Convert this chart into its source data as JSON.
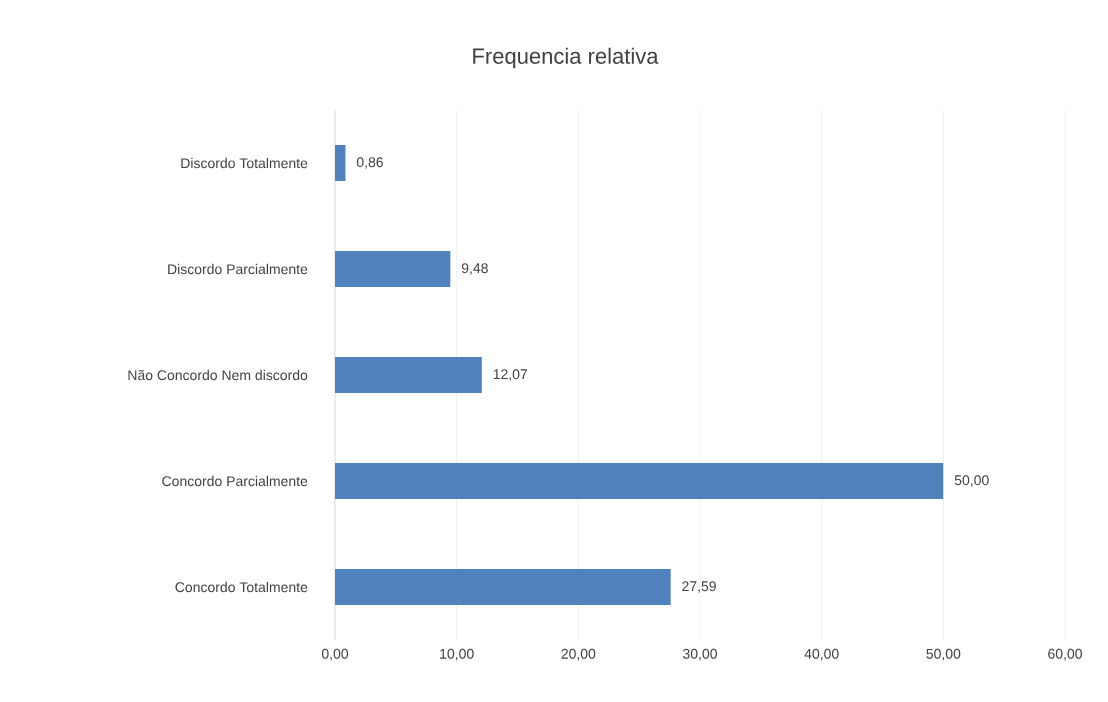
{
  "chart_data": {
    "type": "bar",
    "orientation": "horizontal",
    "title": "Frequencia relativa",
    "categories": [
      "Discordo Totalmente",
      "Discordo Parcialmente",
      "Não Concordo Nem discordo",
      "Concordo Parcialmente",
      "Concordo Totalmente"
    ],
    "values": [
      0.86,
      9.48,
      12.07,
      50.0,
      27.59
    ],
    "value_labels": [
      "0,86",
      "9,48",
      "12,07",
      "50,00",
      "27,59"
    ],
    "color": "#4f81bd",
    "xlim": [
      0,
      60
    ],
    "xticks": [
      {
        "value": 0,
        "label": "0,00"
      },
      {
        "value": 10,
        "label": "10,00"
      },
      {
        "value": 20,
        "label": "20,00"
      },
      {
        "value": 30,
        "label": "30,00"
      },
      {
        "value": 40,
        "label": "40,00"
      },
      {
        "value": 50,
        "label": "50,00"
      },
      {
        "value": 60,
        "label": "60,00"
      }
    ],
    "grid": "x"
  }
}
